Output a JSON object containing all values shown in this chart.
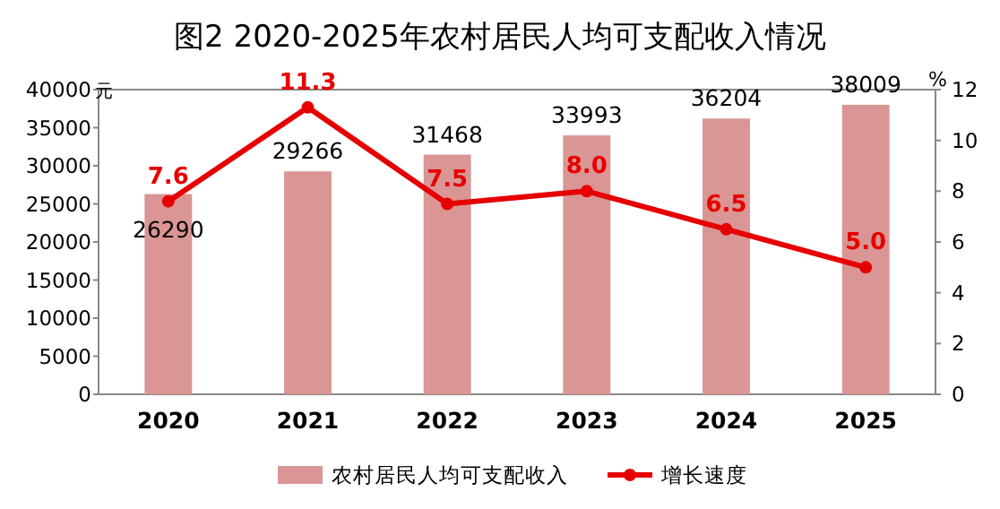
{
  "chart_data": {
    "type": "bar",
    "title": "图2 2020-2025年农村居民人均可支配收入情况",
    "ylabel": "元",
    "y2label": "%",
    "categories": [
      "2020",
      "2021",
      "2022",
      "2023",
      "2024",
      "2025"
    ],
    "series": [
      {
        "name": "农村居民人均可支配收入",
        "color": "#d99694",
        "values": [
          26290,
          29266,
          31468,
          33993,
          36204,
          38009
        ],
        "value_labels": [
          "26290",
          "29266",
          "31468",
          "33993",
          "36204",
          "38009"
        ]
      },
      {
        "name": "增长速度",
        "type": "line",
        "axis": "y2",
        "color": "#e60000",
        "marker": "circle",
        "values": [
          7.6,
          11.3,
          7.5,
          8.0,
          6.5,
          5.0
        ],
        "value_labels": [
          "7.6",
          "11.3",
          "7.5",
          "8.0",
          "6.5",
          "5.0"
        ]
      }
    ],
    "ylim": [
      0,
      40000
    ],
    "yticks": [
      0,
      5000,
      10000,
      15000,
      20000,
      25000,
      30000,
      35000,
      40000
    ],
    "y2lim": [
      0,
      12
    ],
    "y2ticks": [
      0,
      2,
      4,
      6,
      8,
      10,
      12
    ],
    "grid": false,
    "legend": "bottom"
  }
}
